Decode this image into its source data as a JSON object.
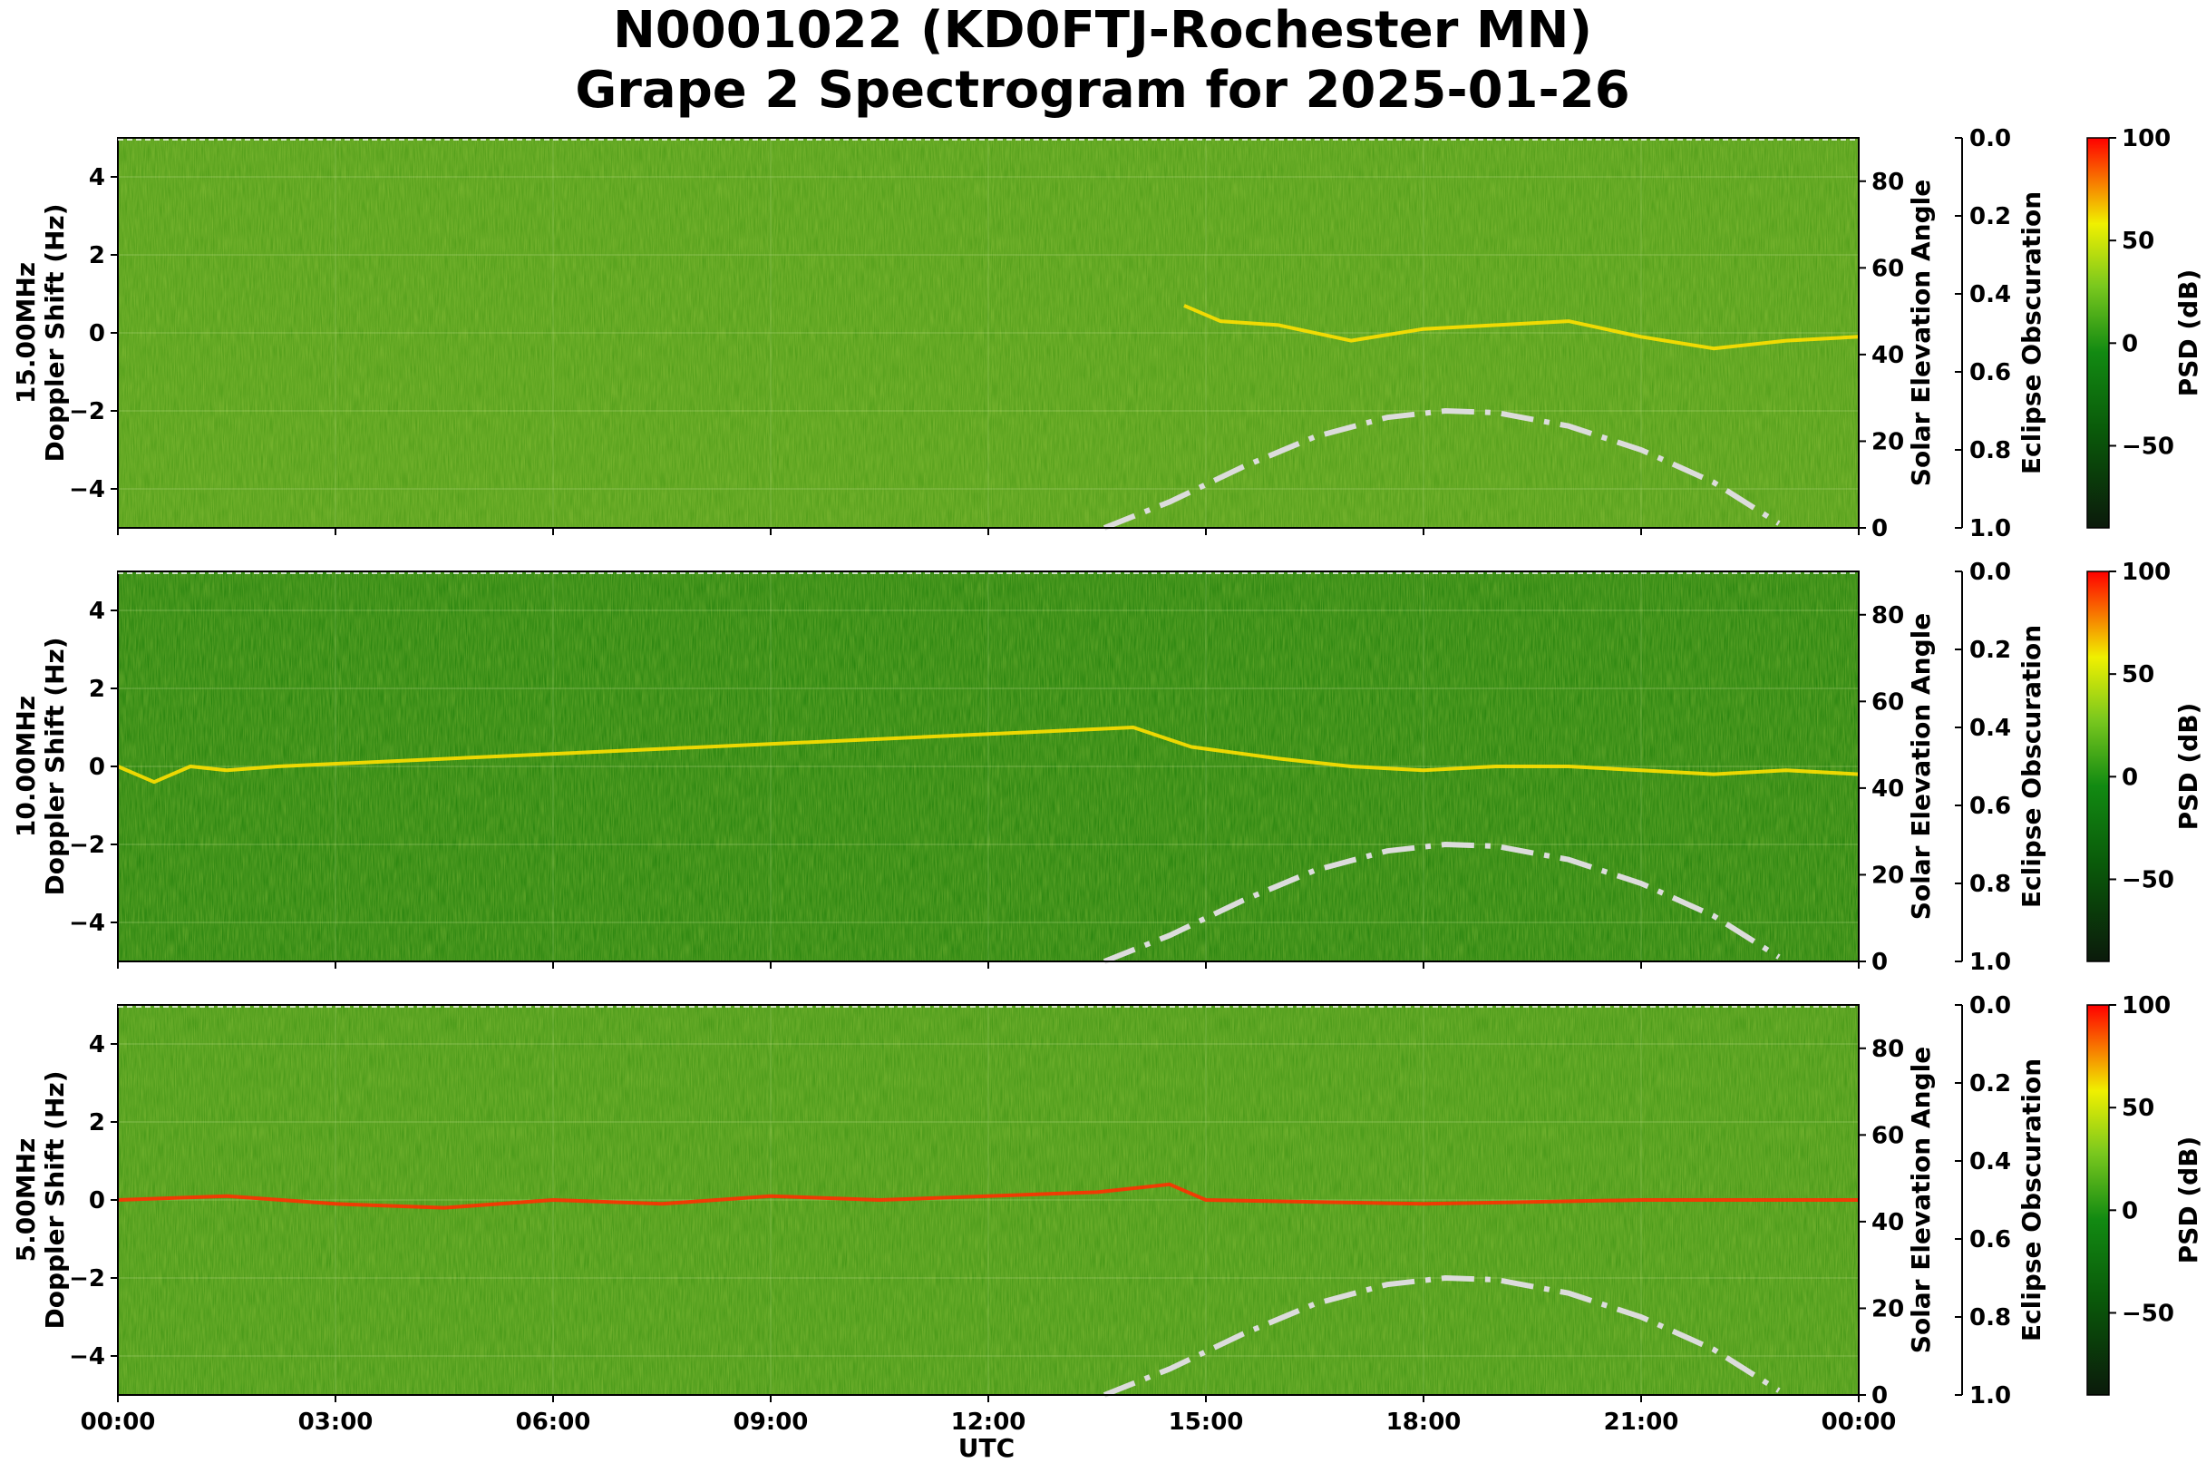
{
  "chart_data": {
    "type": "heatmap",
    "title_line1": "N0001022 (KD0FTJ-Rochester MN)",
    "title_line2": "Grape 2 Spectrogram for 2025-01-26",
    "xlabel": "UTC",
    "x_ticks": [
      "00:00",
      "03:00",
      "06:00",
      "09:00",
      "12:00",
      "15:00",
      "18:00",
      "21:00",
      "00:00"
    ],
    "x_range_hours": [
      0,
      24
    ],
    "ylim": [
      -5,
      5
    ],
    "y_ticks": [
      "4",
      "2",
      "0",
      "−2",
      "−4"
    ],
    "solar_axis_label": "Solar Elevation Angle",
    "solar_ylim": [
      0,
      90
    ],
    "solar_ticks": [
      "0",
      "20",
      "40",
      "60",
      "80"
    ],
    "eclipse_axis_label": "Eclipse Obscuration",
    "eclipse_ylim": [
      1.0,
      0.0
    ],
    "eclipse_ticks": [
      "0.0",
      "0.2",
      "0.4",
      "0.6",
      "0.8",
      "1.0"
    ],
    "colorbar_label": "PSD (dB)",
    "colorbar_range": [
      -90,
      100
    ],
    "colorbar_ticks": [
      "100",
      "50",
      "0",
      "−50"
    ],
    "colormap": [
      "#0b1a0b",
      "#0a5a0a",
      "#128a12",
      "#7ac81e",
      "#f0f000",
      "#ff0000"
    ],
    "grid": true,
    "solar_elevation_curve": {
      "style": "dash-dot",
      "color": "#dcdcdc",
      "points_hours_deg": [
        [
          13.6,
          0
        ],
        [
          14.5,
          6
        ],
        [
          15.5,
          14
        ],
        [
          16.5,
          21
        ],
        [
          17.5,
          25.5
        ],
        [
          18.3,
          27
        ],
        [
          19.0,
          26.6
        ],
        [
          20.0,
          23.5
        ],
        [
          21.0,
          18
        ],
        [
          22.0,
          10.5
        ],
        [
          22.9,
          1
        ]
      ]
    },
    "panels": [
      {
        "ylabel_freq": "15.00MHz",
        "ylabel": "Doppler Shift (Hz)",
        "background": "#4a9a16",
        "carrier_trace_hours_hz": [
          [
            14.7,
            0.7
          ],
          [
            15.2,
            0.3
          ],
          [
            16.0,
            0.2
          ],
          [
            17.0,
            -0.2
          ],
          [
            18.0,
            0.1
          ],
          [
            19.0,
            0.2
          ],
          [
            20.0,
            0.3
          ],
          [
            21.0,
            -0.1
          ],
          [
            22.0,
            -0.4
          ],
          [
            23.0,
            -0.2
          ],
          [
            24.0,
            -0.1
          ]
        ],
        "carrier_color": "#ffe000"
      },
      {
        "ylabel_freq": "10.00MHz",
        "ylabel": "Doppler Shift (Hz)",
        "background": "#1e7e0a",
        "carrier_trace_hours_hz": [
          [
            0.0,
            0.0
          ],
          [
            0.5,
            -0.4
          ],
          [
            1.0,
            0.0
          ],
          [
            1.5,
            -0.1
          ],
          [
            2.2,
            0.0
          ],
          [
            14.0,
            1.0
          ],
          [
            14.8,
            0.5
          ],
          [
            16.0,
            0.2
          ],
          [
            17.0,
            0.0
          ],
          [
            18.0,
            -0.1
          ],
          [
            19.0,
            0.0
          ],
          [
            20.0,
            0.0
          ],
          [
            21.0,
            -0.1
          ],
          [
            22.0,
            -0.2
          ],
          [
            23.0,
            -0.1
          ],
          [
            24.0,
            -0.2
          ]
        ],
        "carrier_color": "#ffe000"
      },
      {
        "ylabel_freq": "5.00MHz",
        "ylabel": "Doppler Shift (Hz)",
        "background": "#3f9414",
        "carrier_trace_hours_hz": [
          [
            0.0,
            0.0
          ],
          [
            1.5,
            0.1
          ],
          [
            3.0,
            -0.1
          ],
          [
            4.5,
            -0.2
          ],
          [
            6.0,
            0.0
          ],
          [
            7.5,
            -0.1
          ],
          [
            9.0,
            0.1
          ],
          [
            10.5,
            0.0
          ],
          [
            12.0,
            0.1
          ],
          [
            13.5,
            0.2
          ],
          [
            14.5,
            0.4
          ],
          [
            15.0,
            0.0
          ],
          [
            18.0,
            -0.1
          ],
          [
            21.0,
            0.0
          ],
          [
            24.0,
            0.0
          ]
        ],
        "carrier_color": "#ff3000"
      }
    ]
  }
}
